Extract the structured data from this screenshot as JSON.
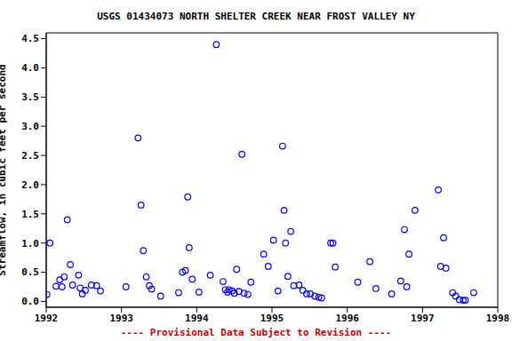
{
  "chart_data": {
    "type": "scatter",
    "title": "USGS 01434073 NORTH SHELTER CREEK NEAR FROST VALLEY NY",
    "y_label": "Streamflow, in cubic feet per second",
    "annotation": "---- Provisional Data Subject to Revision ----",
    "annotation_color": "#cc0000",
    "color": "#0000ff",
    "marker": "circle",
    "grid": false,
    "xlim": [
      1992,
      1998
    ],
    "xticks": [
      1992,
      1993,
      1994,
      1995,
      1996,
      1997,
      1998
    ],
    "ylim": [
      -0.1,
      4.6
    ],
    "yticks": [
      {
        "value": 0,
        "label": "0.0"
      },
      {
        "value": 0.5,
        "label": "0.5"
      },
      {
        "value": 1,
        "label": "1.0"
      },
      {
        "value": 1.5,
        "label": "1.5"
      },
      {
        "value": 2,
        "label": "2.0"
      },
      {
        "value": 2.5,
        "label": "2.5"
      },
      {
        "value": 3,
        "label": "3.0"
      },
      {
        "value": 3.5,
        "label": "3.5"
      },
      {
        "value": 4,
        "label": "4.0"
      },
      {
        "value": 4.5,
        "label": "4.5"
      }
    ],
    "x": [
      1992.01,
      1992.05,
      1992.13,
      1992.18,
      1992.21,
      1992.24,
      1992.28,
      1992.32,
      1992.35,
      1992.43,
      1992.45,
      1992.48,
      1992.52,
      1992.6,
      1992.67,
      1992.72,
      1993.06,
      1993.22,
      1993.26,
      1993.29,
      1993.33,
      1993.37,
      1993.4,
      1993.52,
      1993.76,
      1993.81,
      1993.85,
      1993.88,
      1993.9,
      1993.94,
      1994.03,
      1994.18,
      1994.26,
      1994.35,
      1994.38,
      1994.41,
      1994.43,
      1994.47,
      1994.5,
      1994.53,
      1994.56,
      1994.6,
      1994.63,
      1994.68,
      1994.72,
      1994.89,
      1994.95,
      1995.02,
      1995.08,
      1995.14,
      1995.16,
      1995.18,
      1995.21,
      1995.25,
      1995.29,
      1995.36,
      1995.41,
      1995.46,
      1995.51,
      1995.57,
      1995.62,
      1995.66,
      1995.78,
      1995.81,
      1995.84,
      1996.14,
      1996.3,
      1996.38,
      1996.59,
      1996.71,
      1996.76,
      1996.79,
      1996.82,
      1996.9,
      1997.21,
      1997.24,
      1997.28,
      1997.31,
      1997.4,
      1997.44,
      1997.49,
      1997.54,
      1997.57,
      1997.68
    ],
    "values": [
      0.12,
      1.0,
      0.26,
      0.37,
      0.25,
      0.42,
      1.4,
      0.63,
      0.28,
      0.45,
      0.23,
      0.13,
      0.19,
      0.28,
      0.27,
      0.18,
      0.25,
      2.8,
      1.65,
      0.87,
      0.42,
      0.27,
      0.21,
      0.09,
      0.15,
      0.5,
      0.53,
      1.79,
      0.92,
      0.38,
      0.16,
      0.45,
      4.4,
      0.34,
      0.2,
      0.16,
      0.2,
      0.18,
      0.14,
      0.55,
      0.17,
      2.52,
      0.14,
      0.12,
      0.33,
      0.81,
      0.6,
      1.05,
      0.18,
      2.66,
      1.56,
      1.0,
      0.43,
      1.2,
      0.27,
      0.28,
      0.19,
      0.13,
      0.13,
      0.09,
      0.07,
      0.06,
      1.0,
      1.0,
      0.59,
      0.33,
      0.68,
      0.22,
      0.13,
      0.35,
      1.23,
      0.25,
      0.81,
      1.56,
      1.91,
      0.6,
      1.09,
      0.57,
      0.15,
      0.09,
      0.03,
      0.02,
      0.02,
      0.15
    ]
  }
}
